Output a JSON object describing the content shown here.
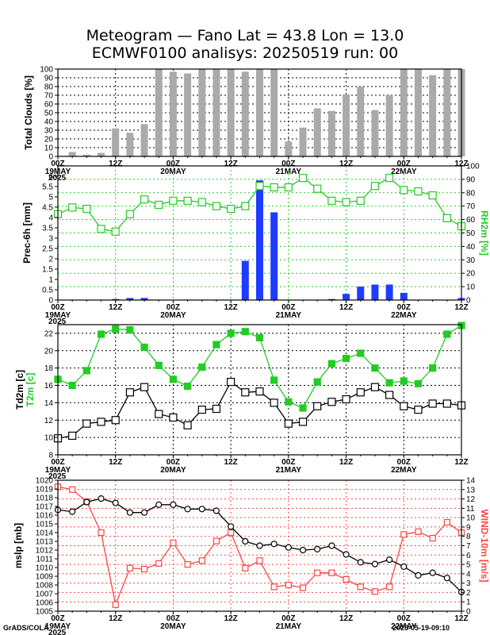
{
  "title": {
    "line1": "Meteogram — Fano Lat = 43.8 Lon = 13.0",
    "line2": "ECMWF0100 analisys: 20250519 run: 00"
  },
  "footer": {
    "left": "GrADS/COLA",
    "right": "2025-05-19-09:10"
  },
  "colors": {
    "blue": "#1e3cff",
    "green": "#22cc22",
    "red": "#ff4444",
    "gray": "#aaaaaa",
    "black": "#000000"
  },
  "x_axis": {
    "ticks": [
      {
        "t": 0,
        "hour": "00Z",
        "date": "19MAY",
        "year": "2025"
      },
      {
        "t": 12,
        "hour": "12Z",
        "date": "",
        "year": ""
      },
      {
        "t": 24,
        "hour": "00Z",
        "date": "20MAY",
        "year": ""
      },
      {
        "t": 36,
        "hour": "12Z",
        "date": "",
        "year": ""
      },
      {
        "t": 48,
        "hour": "00Z",
        "date": "21MAY",
        "year": ""
      },
      {
        "t": 60,
        "hour": "12Z",
        "date": "",
        "year": ""
      },
      {
        "t": 72,
        "hour": "00Z",
        "date": "22MAY",
        "year": ""
      },
      {
        "t": 84,
        "hour": "12Z",
        "date": "",
        "year": ""
      }
    ],
    "range": [
      0,
      84
    ],
    "step_hours": 3
  },
  "chart_data": [
    {
      "type": "bar",
      "panel": "clouds",
      "ylabel": "Total Clouds [%]",
      "ylim": [
        0,
        100
      ],
      "yticks": [
        0,
        10,
        20,
        30,
        40,
        50,
        60,
        70,
        80,
        90,
        100
      ],
      "x": [
        3,
        6,
        9,
        12,
        15,
        18,
        21,
        24,
        27,
        30,
        33,
        36,
        39,
        42,
        45,
        48,
        51,
        54,
        57,
        60,
        63,
        66,
        69,
        72,
        75,
        78,
        81,
        84
      ],
      "values": [
        5,
        2,
        4,
        32,
        27,
        37,
        100,
        97,
        95,
        100,
        100,
        100,
        97,
        100,
        100,
        17,
        33,
        55,
        52,
        71,
        80,
        53,
        70,
        100,
        100,
        93,
        100,
        100
      ]
    },
    {
      "type": "bar+line",
      "panel": "precipitation",
      "ylabel": "Prec-6h [mm]",
      "ylim": [
        0,
        6.5
      ],
      "yticks": [
        0,
        0.5,
        1,
        1.5,
        2,
        2.5,
        3,
        3.5,
        4,
        4.5,
        5,
        5.5,
        6
      ],
      "y2label": "RH2m [%]",
      "y2lim": [
        0,
        100
      ],
      "y2ticks": [
        0,
        10,
        20,
        30,
        40,
        50,
        60,
        70,
        80,
        90,
        100
      ],
      "precip": {
        "x": [
          12,
          15,
          18,
          39,
          42,
          45,
          57,
          60,
          63,
          66,
          69,
          72,
          84
        ],
        "values": [
          0.05,
          0.1,
          0.1,
          1.9,
          5.8,
          4.25,
          0.05,
          0.3,
          0.65,
          0.75,
          0.75,
          0.35,
          0.1
        ]
      },
      "rh": {
        "x": [
          0,
          3,
          6,
          9,
          12,
          15,
          18,
          21,
          24,
          27,
          30,
          33,
          36,
          39,
          42,
          45,
          48,
          51,
          54,
          57,
          60,
          63,
          66,
          69,
          72,
          75,
          78,
          81,
          84
        ],
        "values": [
          64,
          69,
          68,
          53,
          51,
          64,
          75,
          71,
          74,
          74,
          73,
          70,
          68,
          70,
          85,
          84,
          84,
          91,
          83,
          74,
          73,
          74,
          85,
          91,
          82,
          81,
          78,
          61,
          55
        ]
      }
    },
    {
      "type": "line",
      "panel": "temperature",
      "ylabel_black": "Td2m [c]",
      "ylabel_green": "T2m [c]",
      "ylim": [
        8,
        23
      ],
      "yticks": [
        8,
        10,
        12,
        14,
        16,
        18,
        20,
        22
      ],
      "x": [
        0,
        3,
        6,
        9,
        12,
        15,
        18,
        21,
        24,
        27,
        30,
        33,
        36,
        39,
        42,
        45,
        48,
        51,
        54,
        57,
        60,
        63,
        66,
        69,
        72,
        75,
        78,
        81,
        84
      ],
      "series": [
        {
          "values": [
            16.7,
            16.0,
            17.7,
            21.9,
            22.5,
            22.4,
            20.4,
            18.3,
            16.7,
            15.9,
            18.1,
            20.7,
            22.0,
            22.2,
            21.5,
            16.6,
            14.1,
            13.4,
            16.4,
            18.5,
            19.1,
            19.7,
            18.0,
            16.3,
            16.5,
            16.2,
            18.0,
            21.9,
            22.9
          ]
        },
        {
          "values": [
            9.9,
            10.2,
            11.6,
            11.8,
            12.0,
            15.2,
            15.8,
            12.7,
            12.3,
            11.4,
            13.2,
            13.3,
            16.4,
            15.2,
            15.3,
            14.0,
            11.6,
            11.8,
            13.6,
            14.1,
            14.4,
            15.2,
            15.8,
            14.9,
            13.6,
            13.2,
            13.9,
            13.9,
            13.7
          ]
        }
      ]
    },
    {
      "type": "line",
      "panel": "pressure-wind",
      "ylabel": "mslp [mb]",
      "ylim": [
        1005,
        1020
      ],
      "yticks": [
        1005,
        1006,
        1007,
        1008,
        1009,
        1010,
        1011,
        1012,
        1013,
        1014,
        1015,
        1016,
        1017,
        1018,
        1019,
        1020
      ],
      "y2label": "WIND-10m [m/s]",
      "y2lim": [
        0,
        14
      ],
      "y2ticks": [
        0,
        1,
        2,
        3,
        4,
        5,
        6,
        7,
        8,
        9,
        10,
        11,
        12,
        13,
        14
      ],
      "x": [
        0,
        3,
        6,
        9,
        12,
        15,
        18,
        21,
        24,
        27,
        30,
        33,
        36,
        39,
        42,
        45,
        48,
        51,
        54,
        57,
        60,
        63,
        66,
        69,
        72,
        75,
        78,
        81,
        84
      ],
      "mslp": [
        1016.6,
        1016.4,
        1017.5,
        1017.9,
        1017.4,
        1016.3,
        1016.3,
        1017.2,
        1017.2,
        1016.7,
        1016.7,
        1016.5,
        1014.7,
        1013.0,
        1012.5,
        1012.7,
        1012.3,
        1012.0,
        1012.1,
        1012.5,
        1011.5,
        1010.6,
        1010.4,
        1010.9,
        1010.1,
        1009.1,
        1009.4,
        1008.8,
        1007.2
      ],
      "wind": [
        13.3,
        13.0,
        11.7,
        8.4,
        0.7,
        4.6,
        4.5,
        5.1,
        7.3,
        5.0,
        5.4,
        7.5,
        8.4,
        4.6,
        5.4,
        2.6,
        2.8,
        2.5,
        4.1,
        4.1,
        3.4,
        2.6,
        2.1,
        2.6,
        8.2,
        8.5,
        7.8,
        9.5,
        8.4
      ]
    }
  ]
}
